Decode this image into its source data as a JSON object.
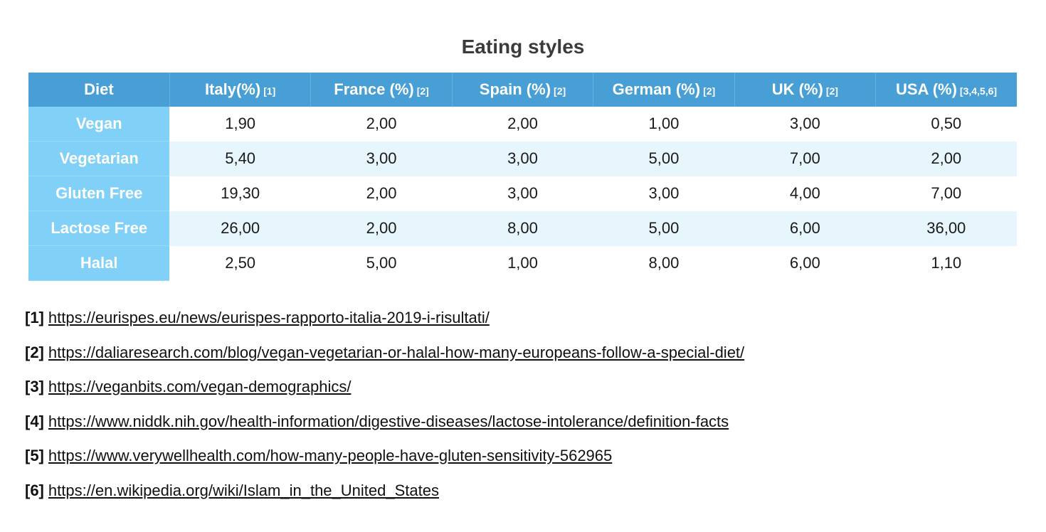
{
  "title": "Eating styles",
  "table": {
    "headers": [
      {
        "label": "Diet",
        "ref": ""
      },
      {
        "label": "Italy(%)",
        "ref": "[1]"
      },
      {
        "label": "France (%)",
        "ref": "[2]"
      },
      {
        "label": "Spain (%)",
        "ref": "[2]"
      },
      {
        "label": "German (%)",
        "ref": "[2]"
      },
      {
        "label": "UK (%)",
        "ref": "[2]"
      },
      {
        "label": "USA (%)",
        "ref": "[3,4,5,6]"
      }
    ],
    "rows": [
      {
        "diet": "Vegan",
        "values": [
          "1,90",
          "2,00",
          "2,00",
          "1,00",
          "3,00",
          "0,50"
        ]
      },
      {
        "diet": "Vegetarian",
        "values": [
          "5,40",
          "3,00",
          "3,00",
          "5,00",
          "7,00",
          "2,00"
        ]
      },
      {
        "diet": "Gluten Free",
        "values": [
          "19,30",
          "2,00",
          "3,00",
          "3,00",
          "4,00",
          "7,00"
        ]
      },
      {
        "diet": "Lactose Free",
        "values": [
          "26,00",
          "2,00",
          "8,00",
          "5,00",
          "6,00",
          "36,00"
        ]
      },
      {
        "diet": "Halal",
        "values": [
          "2,50",
          "5,00",
          "1,00",
          "8,00",
          "6,00",
          "1,10"
        ]
      }
    ]
  },
  "references": [
    {
      "key": "[1]",
      "url": "https://eurispes.eu/news/eurispes-rapporto-italia-2019-i-risultati/"
    },
    {
      "key": "[2]",
      "url": "https://daliaresearch.com/blog/vegan-vegetarian-or-halal-how-many-europeans-follow-a-special-diet/"
    },
    {
      "key": "[3]",
      "url": "https://veganbits.com/vegan-demographics/"
    },
    {
      "key": "[4]",
      "url": "https://www.niddk.nih.gov/health-information/digestive-diseases/lactose-intolerance/definition-facts"
    },
    {
      "key": "[5]",
      "url": "https://www.verywellhealth.com/how-many-people-have-gluten-sensitivity-562965"
    },
    {
      "key": "[6]",
      "url": "https://en.wikipedia.org/wiki/Islam_in_the_United_States"
    }
  ],
  "colors": {
    "header_bg": "#479fd6",
    "row_header_bg": "#80d0f8",
    "alt_row_bg": "#e7f5fd",
    "title_color": "#3b3b3b"
  }
}
